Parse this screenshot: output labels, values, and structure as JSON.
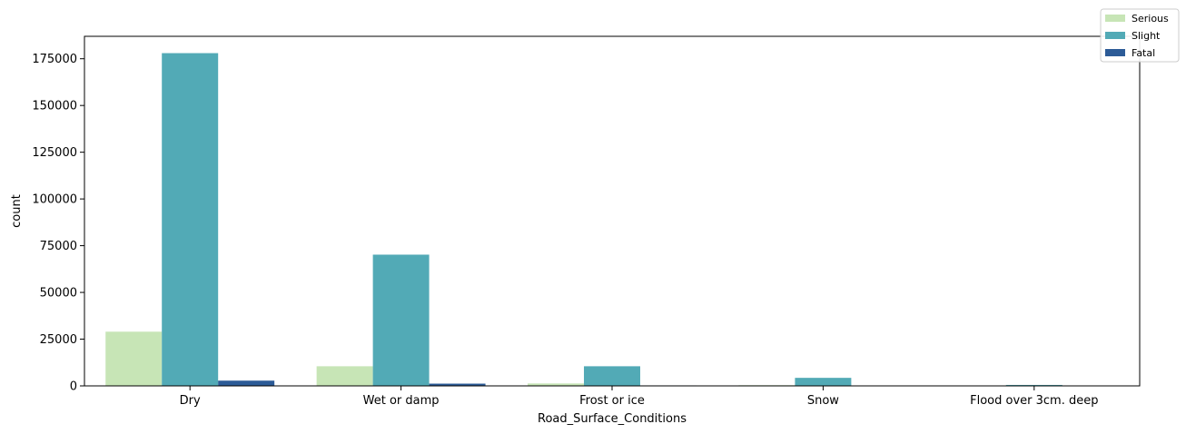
{
  "chart_data": {
    "type": "bar",
    "xlabel": "Road_Surface_Conditions",
    "ylabel": "count",
    "categories": [
      "Dry",
      "Wet or damp",
      "Frost or ice",
      "Snow",
      "Flood over 3cm. deep"
    ],
    "series": [
      {
        "name": "Serious",
        "color": "#c7e5b6",
        "values": [
          29000,
          10500,
          1300,
          350,
          100
        ]
      },
      {
        "name": "Slight",
        "color": "#52aab6",
        "values": [
          178000,
          70200,
          10500,
          4300,
          500
        ]
      },
      {
        "name": "Fatal",
        "color": "#2c5b97",
        "values": [
          2800,
          1200,
          250,
          50,
          10
        ]
      }
    ],
    "ylim": [
      0,
      187000
    ],
    "yticks": [
      0,
      25000,
      50000,
      75000,
      100000,
      125000,
      150000,
      175000
    ],
    "ytick_labels": [
      "0",
      "25000",
      "50000",
      "75000",
      "100000",
      "125000",
      "150000",
      "175000"
    ],
    "grid": false,
    "legend_position": "top-right"
  }
}
